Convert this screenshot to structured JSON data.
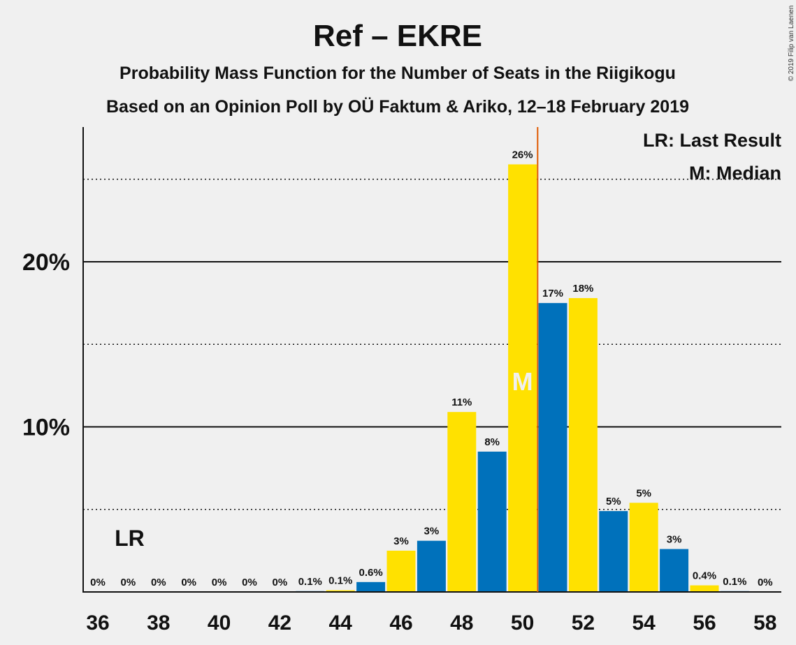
{
  "chart_data": {
    "type": "bar",
    "title": "Ref – EKRE",
    "subtitle_1": "Probability Mass Function for the Number of Seats in the Riigikogu",
    "subtitle_2": "Based on an Opinion Poll by OÜ Faktum & Ariko, 12–18 February 2019",
    "copyright": "© 2019 Filip van Laenen",
    "x": [
      36,
      37,
      38,
      39,
      40,
      41,
      42,
      43,
      44,
      45,
      46,
      47,
      48,
      49,
      50,
      51,
      52,
      53,
      54,
      55,
      56,
      57,
      58
    ],
    "values": [
      0,
      0,
      0,
      0,
      0,
      0,
      0,
      0.05,
      0.1,
      0.6,
      2.5,
      3.1,
      10.9,
      8.5,
      25.9,
      17.5,
      17.8,
      4.9,
      5.4,
      2.6,
      0.4,
      0.05,
      0
    ],
    "value_labels": [
      "0%",
      "0%",
      "0%",
      "0%",
      "0%",
      "0%",
      "0%",
      "0.1%",
      "0.1%",
      "0.6%",
      "3%",
      "3%",
      "11%",
      "8%",
      "26%",
      "17%",
      "18%",
      "5%",
      "5%",
      "3%",
      "0.4%",
      "0.1%",
      "0%"
    ],
    "x_tick_labels": [
      "36",
      "38",
      "40",
      "42",
      "44",
      "46",
      "48",
      "50",
      "52",
      "54",
      "56",
      "58"
    ],
    "y_tick_labels": [
      "10%",
      "20%"
    ],
    "ylim": [
      0,
      28
    ],
    "y_solid_gridlines": [
      10,
      20
    ],
    "y_dotted_gridlines": [
      5,
      15,
      25
    ],
    "last_result_seat": 37,
    "last_result_label": "LR",
    "median_seat": 50,
    "median_label": "M",
    "majority_line_after_seat": 50,
    "legend": [
      "LR: Last Result",
      "M: Median"
    ],
    "legend_position": "top-right",
    "colors": {
      "blue": "#0071bb",
      "yellow": "#ffe100",
      "majority_line": "#e05a00",
      "background": "#f0f0f0"
    }
  }
}
